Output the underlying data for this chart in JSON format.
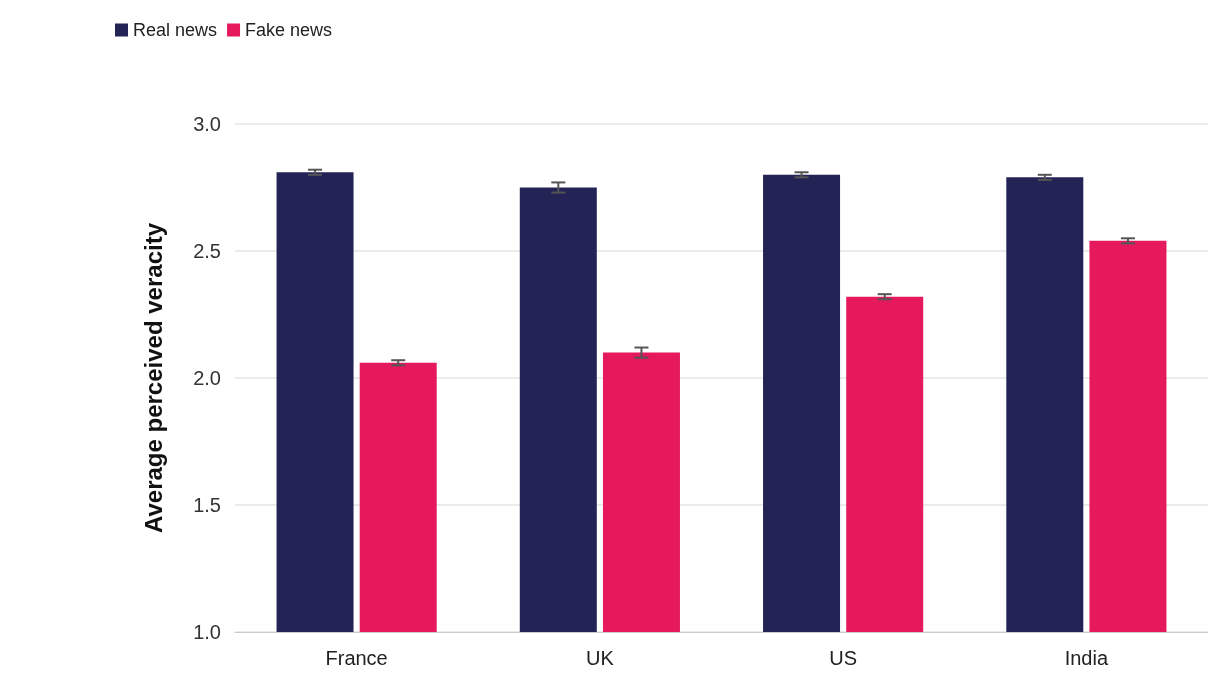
{
  "chart_data": {
    "type": "bar",
    "ylabel": "Average perceived veracity",
    "categories": [
      "France",
      "UK",
      "US",
      "India"
    ],
    "series": [
      {
        "name": "Real news",
        "color": "#232355",
        "values": [
          2.81,
          2.75,
          2.8,
          2.79
        ],
        "errors": [
          0.01,
          0.02,
          0.01,
          0.01
        ]
      },
      {
        "name": "Fake news",
        "color": "#e5195c",
        "values": [
          2.06,
          2.1,
          2.32,
          2.54
        ],
        "errors": [
          0.01,
          0.02,
          0.01,
          0.01
        ]
      }
    ],
    "ylim": [
      1,
      3
    ],
    "yticks": [
      {
        "value": 1,
        "label": "1.0"
      },
      {
        "value": 1.5,
        "label": "1.5"
      },
      {
        "value": 2,
        "label": "2.0"
      },
      {
        "value": 2.5,
        "label": "2.5"
      },
      {
        "value": 3,
        "label": "3.0"
      }
    ],
    "grid": "y",
    "legend": "top left"
  }
}
